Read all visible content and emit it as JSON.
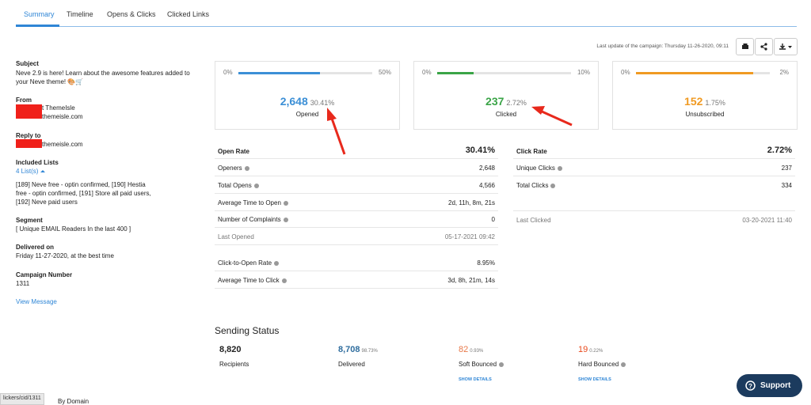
{
  "tabs": [
    "Summary",
    "Timeline",
    "Opens & Clicks",
    "Clicked Links"
  ],
  "last_update": "Last update of the campaign:  Thursday 11-26-2020, 09:11",
  "sidebar": {
    "subject": {
      "label": "Subject",
      "value": "Neve 2.9 is here! Learn about the awesome features added to your Neve theme! 🎨🛒"
    },
    "from": {
      "label": "From",
      "lines": [
        "t ThemeIsle",
        "themeisle.com"
      ]
    },
    "reply_to": {
      "label": "Reply to",
      "value": "themeisle.com"
    },
    "included_lists": {
      "label": "Included Lists",
      "link": "4 List(s)",
      "value": "[189] Neve free - optin confirmed, [190] Hestia free - optin confirmed, [191] Store all paid users, [192] Neve paid users"
    },
    "segment": {
      "label": "Segment",
      "value": "[ Unique EMAIL Readers In the last 400 ]"
    },
    "delivered_on": {
      "label": "Delivered on",
      "value": "Friday 11-27-2020, at the best time"
    },
    "campaign_number": {
      "label": "Campaign Number",
      "value": "1311"
    },
    "view_message": "View Message"
  },
  "cards": [
    {
      "min": "0%",
      "max": "50%",
      "count": "2,648",
      "rate": "30.41%",
      "label": "Opened",
      "color": "#3b8fd6"
    },
    {
      "min": "0%",
      "max": "10%",
      "count": "237",
      "rate": "2.72%",
      "label": "Clicked",
      "color": "#3aa447"
    },
    {
      "min": "0%",
      "max": "2%",
      "count": "152",
      "rate": "1.75%",
      "label": "Unsubscribed",
      "color": "#f09a22"
    }
  ],
  "open_table": {
    "header": [
      "Open Rate",
      "30.41%"
    ],
    "rows": [
      [
        "Openers",
        "2,648"
      ],
      [
        "Total Opens",
        "4,566"
      ],
      [
        "Average Time to Open",
        "2d, 11h, 8m, 21s"
      ],
      [
        "Number of Complaints",
        "0"
      ],
      [
        "Last Opened",
        "05-17-2021 09:42"
      ]
    ],
    "extra_rows": [
      [
        "Click-to-Open Rate",
        "8.95%"
      ],
      [
        "Average Time to Click",
        "3d, 8h, 21m, 14s"
      ]
    ]
  },
  "click_table": {
    "header": [
      "Click Rate",
      "2.72%"
    ],
    "rows": [
      [
        "Unique Clicks",
        "237"
      ],
      [
        "Total Clicks",
        "334"
      ]
    ],
    "last": [
      "Last Clicked",
      "03-20-2021 11:40"
    ]
  },
  "sending_status": {
    "title": "Sending Status",
    "items": [
      {
        "count": "8,820",
        "label": "Recipients"
      },
      {
        "count": "8,708",
        "rate": "98.73%",
        "label": "Delivered"
      },
      {
        "count": "82",
        "rate": "0.93%",
        "label": "Soft Bounced",
        "link": "SHOW DETAILS"
      },
      {
        "count": "19",
        "rate": "0.22%",
        "label": "Hard Bounced",
        "link": "SHOW DETAILS"
      }
    ]
  },
  "status_url": "lickers/cid/1311",
  "by_domain": "By Domain",
  "support": "Support"
}
